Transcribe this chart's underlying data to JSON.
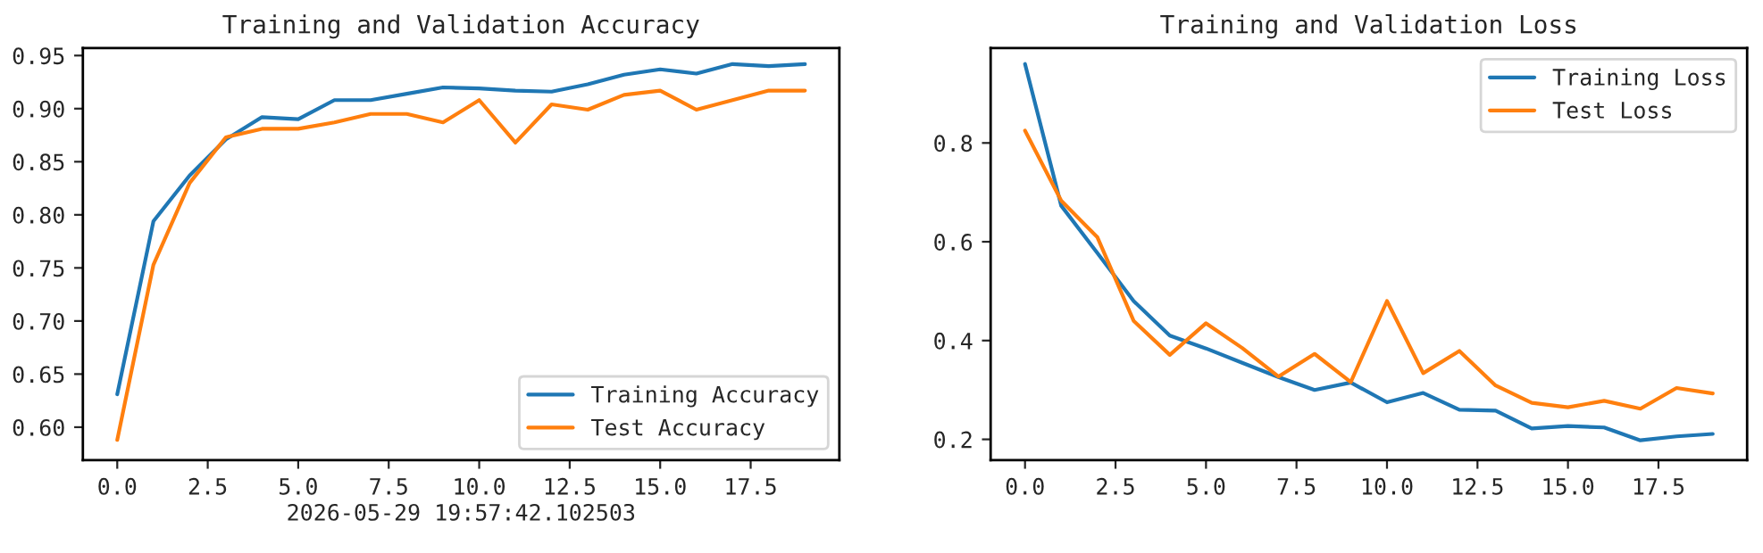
{
  "chart_data": [
    {
      "type": "line",
      "title": "Training and Validation Accuracy",
      "x": [
        0,
        1,
        2,
        3,
        4,
        5,
        6,
        7,
        8,
        9,
        10,
        11,
        12,
        13,
        14,
        15,
        16,
        17,
        18,
        19
      ],
      "series": [
        {
          "name": "Training Accuracy",
          "color": "#1f77b4",
          "values": [
            0.631,
            0.794,
            0.837,
            0.871,
            0.892,
            0.89,
            0.908,
            0.908,
            0.914,
            0.92,
            0.919,
            0.917,
            0.916,
            0.923,
            0.932,
            0.937,
            0.933,
            0.942,
            0.94,
            0.942
          ]
        },
        {
          "name": "Test Accuracy",
          "color": "#ff7f0e",
          "values": [
            0.588,
            0.753,
            0.83,
            0.873,
            0.881,
            0.881,
            0.887,
            0.895,
            0.895,
            0.887,
            0.908,
            0.868,
            0.904,
            0.899,
            0.913,
            0.917,
            0.899,
            0.908,
            0.917,
            0.917
          ]
        }
      ],
      "xlim": [
        -0.95,
        19.95
      ],
      "ylim": [
        0.569,
        0.957
      ],
      "xticks": [
        {
          "value": 0,
          "label": "0.0"
        },
        {
          "value": 2.5,
          "label": "2.5"
        },
        {
          "value": 5,
          "label": "5.0"
        },
        {
          "value": 7.5,
          "label": "7.5"
        },
        {
          "value": 10,
          "label": "10.0"
        },
        {
          "value": 12.5,
          "label": "12.5"
        },
        {
          "value": 15,
          "label": "15.0"
        },
        {
          "value": 17.5,
          "label": "17.5"
        }
      ],
      "yticks": [
        {
          "value": 0.6,
          "label": "0.60"
        },
        {
          "value": 0.65,
          "label": "0.65"
        },
        {
          "value": 0.7,
          "label": "0.70"
        },
        {
          "value": 0.75,
          "label": "0.75"
        },
        {
          "value": 0.8,
          "label": "0.80"
        },
        {
          "value": 0.85,
          "label": "0.85"
        },
        {
          "value": 0.9,
          "label": "0.90"
        },
        {
          "value": 0.95,
          "label": "0.95"
        }
      ],
      "legend": "bottom right",
      "grid": false,
      "annotations": [
        "2026-05-29 19:57:42.102503"
      ]
    },
    {
      "type": "line",
      "title": "Training and Validation Loss",
      "x": [
        0,
        1,
        2,
        3,
        4,
        5,
        6,
        7,
        8,
        9,
        10,
        11,
        12,
        13,
        14,
        15,
        16,
        17,
        18,
        19
      ],
      "series": [
        {
          "name": "Training Loss",
          "color": "#1f77b4",
          "values": [
            0.96,
            0.673,
            0.577,
            0.48,
            0.41,
            0.384,
            0.355,
            0.326,
            0.3,
            0.315,
            0.275,
            0.294,
            0.26,
            0.258,
            0.222,
            0.227,
            0.224,
            0.198,
            0.206,
            0.211
          ]
        },
        {
          "name": "Test Loss",
          "color": "#ff7f0e",
          "values": [
            0.825,
            0.683,
            0.609,
            0.44,
            0.371,
            0.435,
            0.385,
            0.327,
            0.373,
            0.316,
            0.48,
            0.334,
            0.379,
            0.309,
            0.274,
            0.265,
            0.278,
            0.262,
            0.304,
            0.293
          ]
        }
      ],
      "xlim": [
        -0.95,
        19.95
      ],
      "ylim": [
        0.158,
        0.992
      ],
      "xticks": [
        {
          "value": 0,
          "label": "0.0"
        },
        {
          "value": 2.5,
          "label": "2.5"
        },
        {
          "value": 5,
          "label": "5.0"
        },
        {
          "value": 7.5,
          "label": "7.5"
        },
        {
          "value": 10,
          "label": "10.0"
        },
        {
          "value": 12.5,
          "label": "12.5"
        },
        {
          "value": 15,
          "label": "15.0"
        },
        {
          "value": 17.5,
          "label": "17.5"
        }
      ],
      "yticks": [
        {
          "value": 0.2,
          "label": "0.2"
        },
        {
          "value": 0.4,
          "label": "0.4"
        },
        {
          "value": 0.6,
          "label": "0.6"
        },
        {
          "value": 0.8,
          "label": "0.8"
        }
      ],
      "legend": "top right",
      "grid": false
    }
  ]
}
